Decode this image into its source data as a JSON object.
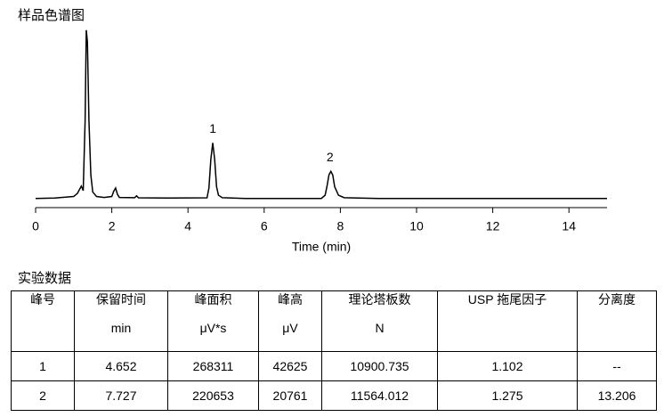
{
  "chart_data": {
    "type": "line",
    "title": "样品色谱图",
    "xlabel": "Time (min)",
    "x": [
      0,
      0.5,
      1.0,
      1.1,
      1.2,
      1.25,
      1.3,
      1.33,
      1.36,
      1.4,
      1.45,
      1.5,
      1.6,
      1.8,
      2.0,
      2.05,
      2.1,
      2.15,
      2.2,
      2.6,
      2.65,
      2.7,
      3.5,
      4.5,
      4.55,
      4.6,
      4.65,
      4.7,
      4.75,
      4.8,
      4.9,
      5.5,
      7.5,
      7.6,
      7.65,
      7.7,
      7.75,
      7.8,
      7.85,
      7.95,
      8.1,
      9,
      12,
      15
    ],
    "values": [
      0,
      300,
      1500,
      4000,
      9500,
      6000,
      60000,
      129000,
      120000,
      60000,
      18000,
      5000,
      1500,
      800,
      1500,
      5500,
      8000,
      3000,
      800,
      600,
      2000,
      500,
      300,
      500,
      8000,
      30000,
      42625,
      30000,
      9000,
      2500,
      600,
      0,
      0,
      2500,
      9500,
      18000,
      20761,
      18000,
      9000,
      2500,
      600,
      0,
      0,
      0
    ],
    "color": "#000000",
    "xlim": [
      0,
      15
    ],
    "xticks": [
      0,
      2,
      4,
      6,
      8,
      10,
      12,
      14
    ],
    "ylim": [
      -7000,
      135000
    ],
    "annotations": [
      {
        "text": "1",
        "x": 4.652,
        "y": 42625
      },
      {
        "text": "2",
        "x": 7.727,
        "y": 20761
      }
    ]
  },
  "table": {
    "title": "实验数据",
    "columns": [
      {
        "name": "峰号"
      },
      {
        "name": "保留时间",
        "unit": "min"
      },
      {
        "name": "峰面积",
        "unit": "μV*s"
      },
      {
        "name": "峰高",
        "unit": "μV"
      },
      {
        "name": "理论塔板数",
        "unit": "N"
      },
      {
        "name": "USP 拖尾因子"
      },
      {
        "name": "分离度"
      }
    ],
    "rows": [
      [
        "1",
        "4.652",
        "268311",
        "42625",
        "10900.735",
        "1.102",
        "--"
      ],
      [
        "2",
        "7.727",
        "220653",
        "20761",
        "11564.012",
        "1.275",
        "13.206"
      ]
    ]
  }
}
